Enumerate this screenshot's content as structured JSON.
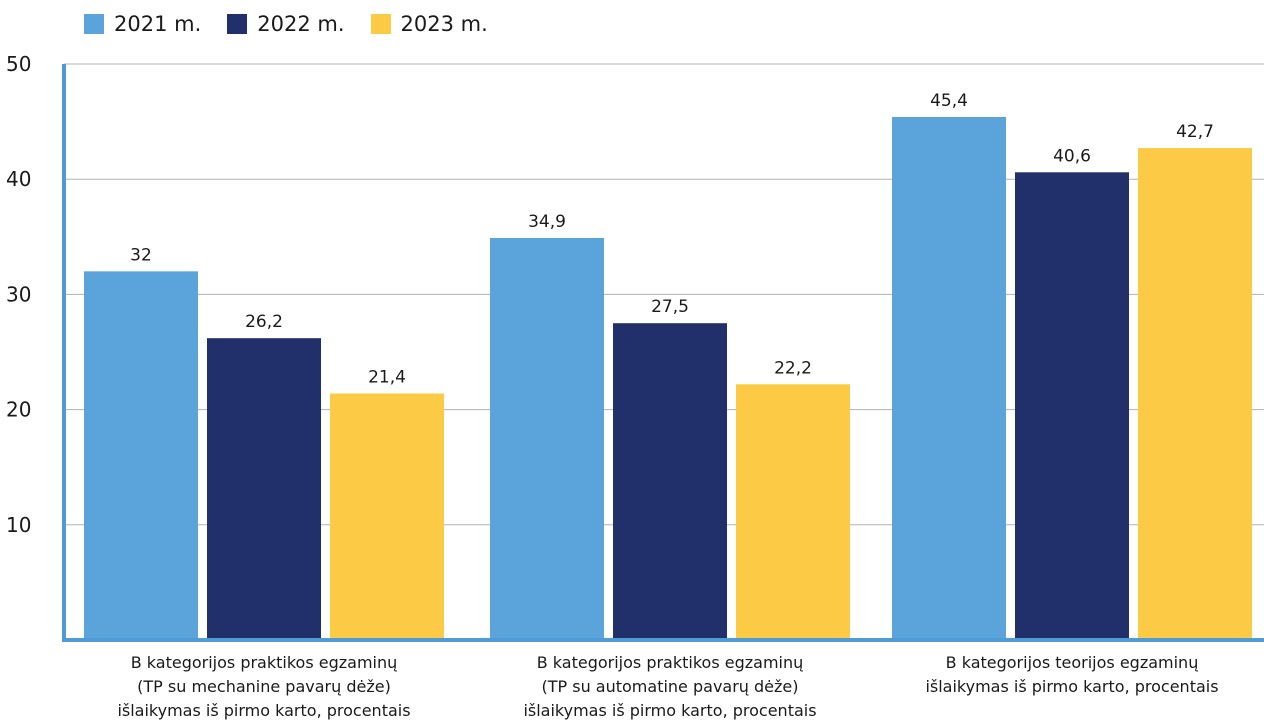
{
  "chart_data": {
    "type": "bar",
    "categories": [
      [
        "B kategorijos praktikos egzaminų",
        "(TP su mechanine pavarų dėže)",
        "išlaikymas iš pirmo karto, procentais"
      ],
      [
        "B kategorijos praktikos egzaminų",
        "(TP su automatine pavarų dėže)",
        "išlaikymas iš pirmo karto, procentais"
      ],
      [
        "B kategorijos teorijos egzaminų",
        "išlaikymas iš pirmo karto, procentais"
      ]
    ],
    "series": [
      {
        "name": "2021 m.",
        "color": "#5ba3db",
        "values": [
          32,
          34.9,
          45.4
        ],
        "labels": [
          "32",
          "34,9",
          "45,4"
        ]
      },
      {
        "name": "2022 m.",
        "color": "#21306a",
        "values": [
          26.2,
          27.5,
          40.6
        ],
        "labels": [
          "26,2",
          "27,5",
          "40,6"
        ]
      },
      {
        "name": "2023 m.",
        "color": "#fdca45",
        "values": [
          21.4,
          22.2,
          42.7
        ],
        "labels": [
          "21,4",
          "22,2",
          "42,7"
        ]
      }
    ],
    "yticks": [
      "10",
      "20",
      "30",
      "40",
      "50"
    ],
    "ylim": [
      0,
      50
    ],
    "grid": true,
    "legend_position": "top-left",
    "axis_color": "#4f9bd5",
    "grid_color": "#b3b3b3",
    "title": "",
    "xlabel": "",
    "ylabel": ""
  }
}
